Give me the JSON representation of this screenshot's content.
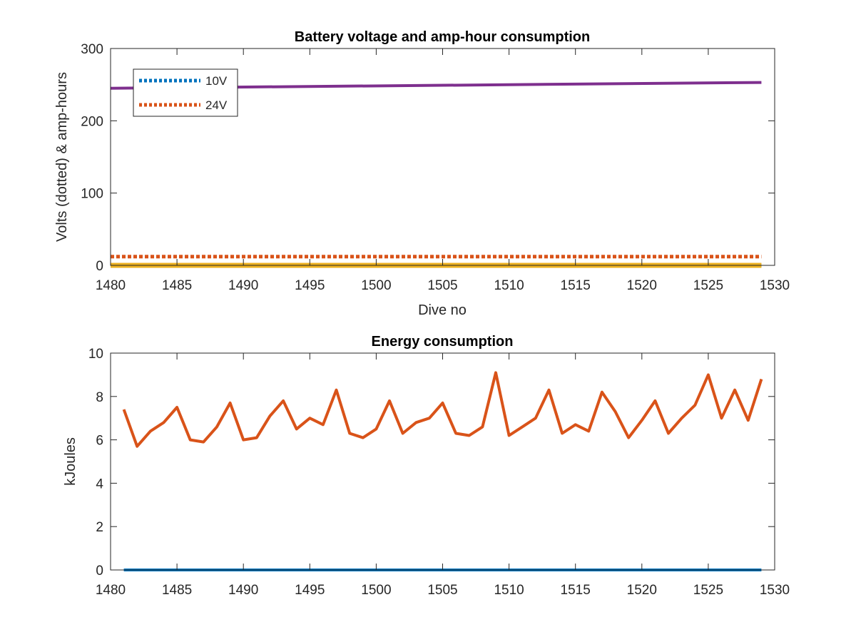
{
  "chart_data": [
    {
      "type": "line",
      "title": "Battery voltage and amp-hour consumption",
      "xlabel": "Dive no",
      "ylabel": "Volts (dotted) & amp-hours",
      "xlim": [
        1480,
        1530
      ],
      "ylim": [
        0,
        300
      ],
      "xticks": [
        1480,
        1485,
        1490,
        1495,
        1500,
        1505,
        1510,
        1515,
        1520,
        1525,
        1530
      ],
      "yticks": [
        0,
        100,
        200,
        300
      ],
      "grid": false,
      "legend": {
        "location": "top-left",
        "entries": [
          "10V",
          "24V"
        ]
      },
      "series": [
        {
          "name": "10V",
          "color": "#0072BD",
          "style": "dotted",
          "x": [
            1480,
            1529
          ],
          "y": [
            0,
            0
          ]
        },
        {
          "name": "24V",
          "color": "#D95319",
          "style": "dotted",
          "x": [
            1480,
            1529
          ],
          "y": [
            12,
            12
          ]
        },
        {
          "color": "#EDB120",
          "style": "solid",
          "x": [
            1480,
            1529
          ],
          "y": [
            0,
            0
          ]
        },
        {
          "color": "#7E2F8E",
          "style": "solid",
          "x": [
            1480,
            1529
          ],
          "y": [
            245,
            253
          ]
        }
      ]
    },
    {
      "type": "line",
      "title": "Energy consumption",
      "xlabel": "",
      "ylabel": "kJoules",
      "xlim": [
        1480,
        1530
      ],
      "ylim": [
        0,
        10
      ],
      "xticks": [
        1480,
        1485,
        1490,
        1495,
        1500,
        1505,
        1510,
        1515,
        1520,
        1525,
        1530
      ],
      "yticks": [
        0,
        2,
        4,
        6,
        8,
        10
      ],
      "grid": false,
      "series": [
        {
          "color": "#0072BD",
          "style": "solid",
          "x": [
            1481,
            1529
          ],
          "y": [
            0,
            0
          ]
        },
        {
          "color": "#D95319",
          "style": "solid",
          "x": [
            1481,
            1482,
            1483,
            1484,
            1485,
            1486,
            1487,
            1488,
            1489,
            1490,
            1491,
            1492,
            1493,
            1494,
            1495,
            1496,
            1497,
            1498,
            1499,
            1500,
            1501,
            1502,
            1503,
            1504,
            1505,
            1506,
            1507,
            1508,
            1509,
            1510,
            1511,
            1512,
            1513,
            1514,
            1515,
            1516,
            1517,
            1518,
            1519,
            1520,
            1521,
            1522,
            1523,
            1524,
            1525,
            1526,
            1527,
            1528,
            1529
          ],
          "y": [
            7.4,
            5.7,
            6.4,
            6.8,
            7.5,
            6.0,
            5.9,
            6.6,
            7.7,
            6.0,
            6.1,
            7.1,
            7.8,
            6.5,
            7.0,
            6.7,
            8.3,
            6.3,
            6.1,
            6.5,
            7.8,
            6.3,
            6.8,
            7.0,
            7.7,
            6.3,
            6.2,
            6.6,
            9.1,
            6.2,
            6.6,
            7.0,
            8.3,
            6.3,
            6.7,
            6.4,
            8.2,
            7.3,
            6.1,
            6.9,
            7.8,
            6.3,
            7.0,
            7.6,
            9.0,
            7.0,
            8.3,
            6.9,
            8.8
          ]
        }
      ]
    }
  ]
}
